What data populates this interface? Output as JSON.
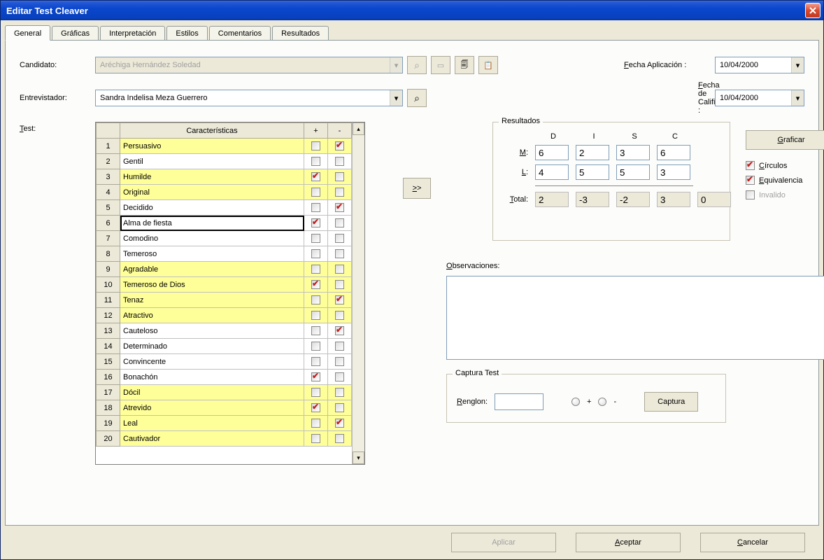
{
  "window": {
    "title": "Editar Test Cleaver"
  },
  "tabs": [
    "General",
    "Gráficas",
    "Interpretación",
    "Estilos",
    "Comentarios",
    "Resultados"
  ],
  "active_tab": 0,
  "labels": {
    "candidato": "Candidato:",
    "entrevistador": "Entrevistador:",
    "test": "Test:",
    "fecha_aplicacion": "Fecha Aplicación :",
    "fecha_calificacion": "Fecha de Calificación :",
    "resultados": "Resultados",
    "observaciones": "Observaciones:",
    "captura_test": "Captura Test",
    "renglon": "Renglon:",
    "graficar": "Graficar",
    "circulos": "Círculos",
    "equivalencia": "Equivalencia",
    "invalido": "Invalido",
    "captura": "Captura",
    "aplicar": "Aplicar",
    "aceptar": "Aceptar",
    "cancelar": "Cancelar",
    "transfer": ">>",
    "col_caract": "Características",
    "col_plus": "+",
    "col_minus": "-"
  },
  "candidato": "Aréchiga Hernández Soledad",
  "entrevistador": "Sandra Indelisa Meza Guerrero",
  "fecha_aplicacion": "10/04/2000",
  "fecha_calificacion": "10/04/2000",
  "test_rows": [
    {
      "n": 1,
      "name": "Persuasivo",
      "plus": false,
      "minus": true,
      "hl": true
    },
    {
      "n": 2,
      "name": "Gentil",
      "plus": false,
      "minus": false,
      "hl": false
    },
    {
      "n": 3,
      "name": "Humilde",
      "plus": true,
      "minus": false,
      "hl": true
    },
    {
      "n": 4,
      "name": "Original",
      "plus": false,
      "minus": false,
      "hl": true
    },
    {
      "n": 5,
      "name": "Decidido",
      "plus": false,
      "minus": true,
      "hl": false
    },
    {
      "n": 6,
      "name": "Alma de fiesta",
      "plus": true,
      "minus": false,
      "hl": false,
      "selected": true
    },
    {
      "n": 7,
      "name": "Comodino",
      "plus": false,
      "minus": false,
      "hl": false
    },
    {
      "n": 8,
      "name": "Temeroso",
      "plus": false,
      "minus": false,
      "hl": false
    },
    {
      "n": 9,
      "name": "Agradable",
      "plus": false,
      "minus": false,
      "hl": true
    },
    {
      "n": 10,
      "name": "Temeroso de Dios",
      "plus": true,
      "minus": false,
      "hl": true
    },
    {
      "n": 11,
      "name": "Tenaz",
      "plus": false,
      "minus": true,
      "hl": true
    },
    {
      "n": 12,
      "name": "Atractivo",
      "plus": false,
      "minus": false,
      "hl": true
    },
    {
      "n": 13,
      "name": "Cauteloso",
      "plus": false,
      "minus": true,
      "hl": false
    },
    {
      "n": 14,
      "name": "Determinado",
      "plus": false,
      "minus": false,
      "hl": false
    },
    {
      "n": 15,
      "name": "Convincente",
      "plus": false,
      "minus": false,
      "hl": false
    },
    {
      "n": 16,
      "name": "Bonachón",
      "plus": true,
      "minus": false,
      "hl": false
    },
    {
      "n": 17,
      "name": "Dócil",
      "plus": false,
      "minus": false,
      "hl": true
    },
    {
      "n": 18,
      "name": "Atrevido",
      "plus": true,
      "minus": false,
      "hl": true
    },
    {
      "n": 19,
      "name": "Leal",
      "plus": false,
      "minus": true,
      "hl": true
    },
    {
      "n": 20,
      "name": "Cautivador",
      "plus": false,
      "minus": false,
      "hl": true
    }
  ],
  "resultados": {
    "cols": [
      "D",
      "I",
      "S",
      "C"
    ],
    "M": [
      "6",
      "2",
      "3",
      "6"
    ],
    "L": [
      "4",
      "5",
      "5",
      "3"
    ],
    "Total": [
      "2",
      "-3",
      "-2",
      "3"
    ],
    "TotalExtra": "0",
    "row_labels": {
      "M": "M:",
      "L": "L:",
      "Total": "Total:"
    }
  },
  "checks": {
    "circulos": true,
    "equivalencia": true,
    "invalido": false
  },
  "colors": {
    "highlight": "#ffff99",
    "titlebar_start": "#2559d4",
    "panel_bg": "#fcfcfa",
    "window_bg": "#ece9d8"
  }
}
